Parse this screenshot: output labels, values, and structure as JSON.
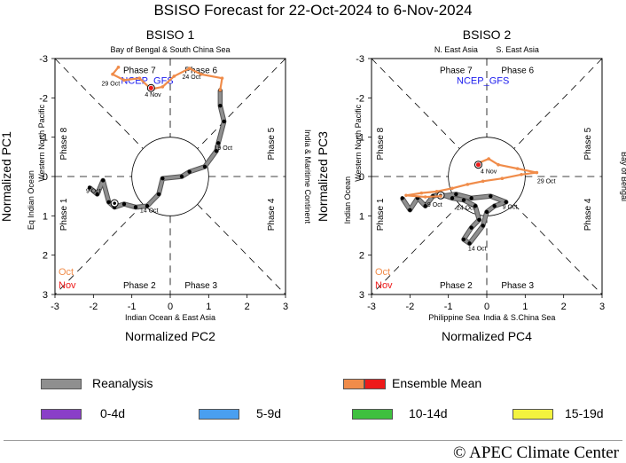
{
  "title": "BSISO Forecast for 22-Oct-2024 to 6-Nov-2024",
  "credit": "© APEC Climate Center",
  "legend": {
    "items": [
      {
        "label": "Reanalysis",
        "colors": [
          "#8f8f8f"
        ]
      },
      {
        "label": "Ensemble Mean",
        "colors": [
          "#f08c4a",
          "#ee1a1a"
        ]
      },
      {
        "label": "0-4d",
        "colors": [
          "#8a3fc8"
        ]
      },
      {
        "label": "5-9d",
        "colors": [
          "#4a9ff0"
        ]
      },
      {
        "label": "10-14d",
        "colors": [
          "#3fc03f"
        ]
      },
      {
        "label": "15-19d",
        "colors": [
          "#f3f33f"
        ]
      }
    ]
  },
  "month_labels": [
    {
      "text": "Oct",
      "color": "#f08c4a"
    },
    {
      "text": "Nov",
      "color": "#ee1a1a"
    }
  ],
  "chart_data": [
    {
      "type": "scatter",
      "title": "BSISO 1",
      "xlabel": "Normalized PC2",
      "ylabel": "Normalized PC1",
      "xlim": [
        -3,
        3
      ],
      "ylim": [
        3,
        -3
      ],
      "y_reversed": true,
      "ticks": [
        -3,
        -2,
        -1,
        0,
        1,
        2,
        3
      ],
      "top_region": "Bay of Bengal & South China Sea",
      "bottom_region": "Indian Ocean & East Asia",
      "left_region": [
        "Eq Indian Ocean",
        "Western North Pacific"
      ],
      "right_region": "India & Maritime Continent",
      "phases": [
        {
          "label": "Phase 7",
          "x": -0.8,
          "y": -2.7
        },
        {
          "label": "Phase 6",
          "x": 0.8,
          "y": -2.7
        },
        {
          "label": "Phase 8",
          "x": -2.7,
          "y": -0.9,
          "rotate": true
        },
        {
          "label": "Phase 5",
          "x": 2.7,
          "y": -0.9,
          "rotate": true
        },
        {
          "label": "Phase 1",
          "x": -2.7,
          "y": 0.9,
          "rotate": true
        },
        {
          "label": "Phase 4",
          "x": 2.7,
          "y": 0.9,
          "rotate": true
        },
        {
          "label": "Phase 2",
          "x": -0.8,
          "y": 2.78
        },
        {
          "label": "Phase 3",
          "x": 0.8,
          "y": 2.78
        }
      ],
      "model_label": {
        "text": "NCEP_GFS",
        "color": "#1a1aee",
        "x": -0.6,
        "y": -2.45
      },
      "series": [
        {
          "name": "Reanalysis",
          "color": "#8f8f8f",
          "points": [
            [
              -2.1,
              0.28
            ],
            [
              -1.9,
              0.45
            ],
            [
              -1.75,
              0.1
            ],
            [
              -1.6,
              0.65
            ],
            [
              -1.45,
              0.78
            ],
            [
              -1.2,
              0.7
            ],
            [
              -0.9,
              0.78
            ],
            [
              -0.6,
              0.75
            ],
            [
              -0.3,
              0.45
            ],
            [
              -0.2,
              0.05
            ],
            [
              0.3,
              0.0
            ],
            [
              0.5,
              -0.12
            ],
            [
              0.9,
              -0.25
            ],
            [
              1.2,
              -0.65
            ],
            [
              1.25,
              -0.85
            ],
            [
              1.4,
              -1.4
            ],
            [
              1.3,
              -1.8
            ],
            [
              1.3,
              -2.2
            ]
          ],
          "date_labels": [
            {
              "text": "9 Oct",
              "x": -2.0,
              "y": 0.35
            },
            {
              "text": "14 Oct",
              "x": -0.55,
              "y": 0.85
            },
            {
              "text": "19 Oct",
              "x": 1.38,
              "y": -0.75
            }
          ],
          "start_marker": [
            -1.45,
            0.68
          ]
        },
        {
          "name": "Ensemble Mean",
          "color": "#f08c4a",
          "points": [
            [
              1.3,
              -2.2
            ],
            [
              1.35,
              -2.5
            ],
            [
              0.8,
              -2.6
            ],
            [
              0.5,
              -2.75
            ],
            [
              0.1,
              -2.55
            ],
            [
              -0.2,
              -2.28
            ],
            [
              -0.5,
              -2.22
            ],
            [
              -0.8,
              -2.5
            ],
            [
              -1.2,
              -2.45
            ],
            [
              -1.5,
              -2.6
            ],
            [
              -1.35,
              -2.78
            ]
          ],
          "date_labels": [
            {
              "text": "24 Oct",
              "x": 0.55,
              "y": -2.55
            },
            {
              "text": "29 Oct",
              "x": -1.55,
              "y": -2.38
            },
            {
              "text": "4 Nov",
              "x": -0.45,
              "y": -2.1
            }
          ],
          "end_marker": [
            -0.5,
            -2.25
          ]
        }
      ]
    },
    {
      "type": "scatter",
      "title": "BSISO 2",
      "xlabel": "Normalized PC4",
      "ylabel": "Normalized PC3",
      "xlim": [
        -3,
        3
      ],
      "ylim": [
        3,
        -3
      ],
      "y_reversed": true,
      "ticks": [
        -3,
        -2,
        -1,
        0,
        1,
        2,
        3
      ],
      "top_region": [
        "N. East Asia",
        "S. East Asia"
      ],
      "bottom_region": [
        "Philippine Sea",
        "India & S.China Sea"
      ],
      "left_region": [
        "Indian Ocean",
        "Western North Pacific"
      ],
      "right_region": "Bay of Bengal",
      "phases": [
        {
          "label": "Phase 7",
          "x": -0.8,
          "y": -2.7
        },
        {
          "label": "Phase 6",
          "x": 0.8,
          "y": -2.7
        },
        {
          "label": "Phase 8",
          "x": -2.7,
          "y": -0.9,
          "rotate": true
        },
        {
          "label": "Phase 5",
          "x": 2.7,
          "y": -0.9,
          "rotate": true
        },
        {
          "label": "Phase 1",
          "x": -2.7,
          "y": 0.9,
          "rotate": true
        },
        {
          "label": "Phase 4",
          "x": 2.7,
          "y": 0.9,
          "rotate": true
        },
        {
          "label": "Phase 2",
          "x": -0.8,
          "y": 2.78
        },
        {
          "label": "Phase 3",
          "x": 0.8,
          "y": 2.78
        }
      ],
      "model_label": {
        "text": "NCEP_GFS",
        "color": "#1a1aee",
        "x": -0.1,
        "y": -2.45
      },
      "series": [
        {
          "name": "Reanalysis",
          "color": "#8f8f8f",
          "points": [
            [
              -2.2,
              0.55
            ],
            [
              -2.0,
              0.85
            ],
            [
              -1.8,
              0.55
            ],
            [
              -1.6,
              0.75
            ],
            [
              -1.4,
              0.5
            ],
            [
              -1.2,
              0.45
            ],
            [
              -0.9,
              0.55
            ],
            [
              -0.6,
              0.6
            ],
            [
              -0.3,
              0.75
            ],
            [
              -0.2,
              1.1
            ],
            [
              -0.4,
              1.3
            ],
            [
              -0.6,
              1.6
            ],
            [
              -0.45,
              1.7
            ],
            [
              -0.1,
              1.25
            ],
            [
              0.0,
              0.9
            ],
            [
              0.2,
              0.75
            ],
            [
              0.5,
              0.65
            ],
            [
              0.1,
              0.5
            ],
            [
              -0.4,
              0.55
            ],
            [
              -0.8,
              0.45
            ],
            [
              -1.2,
              0.5
            ]
          ],
          "date_labels": [
            {
              "text": "14 Oct",
              "x": -0.25,
              "y": 1.82
            },
            {
              "text": "9 Oct",
              "x": 0.6,
              "y": 0.75
            },
            {
              "text": "19 Oct",
              "x": -1.4,
              "y": 0.7
            }
          ],
          "start_marker": [
            -1.2,
            0.48
          ]
        },
        {
          "name": "Ensemble Mean",
          "color": "#f08c4a",
          "points": [
            [
              -1.2,
              0.5
            ],
            [
              -1.6,
              0.52
            ],
            [
              -2.1,
              0.48
            ],
            [
              -1.7,
              0.42
            ],
            [
              -1.3,
              0.38
            ],
            [
              -0.9,
              0.3
            ],
            [
              -0.5,
              0.2
            ],
            [
              -0.1,
              0.12
            ],
            [
              0.4,
              0.05
            ],
            [
              0.9,
              -0.05
            ],
            [
              1.3,
              -0.1
            ],
            [
              0.8,
              -0.2
            ],
            [
              0.3,
              -0.3
            ],
            [
              0.05,
              -0.45
            ],
            [
              -0.2,
              -0.35
            ]
          ],
          "date_labels": [
            {
              "text": "24 Oct",
              "x": -0.55,
              "y": 0.78
            },
            {
              "text": "29 Oct",
              "x": 1.55,
              "y": 0.1
            },
            {
              "text": "4 Nov",
              "x": 0.05,
              "y": -0.15
            }
          ],
          "end_marker": [
            -0.22,
            -0.3
          ]
        }
      ]
    }
  ]
}
